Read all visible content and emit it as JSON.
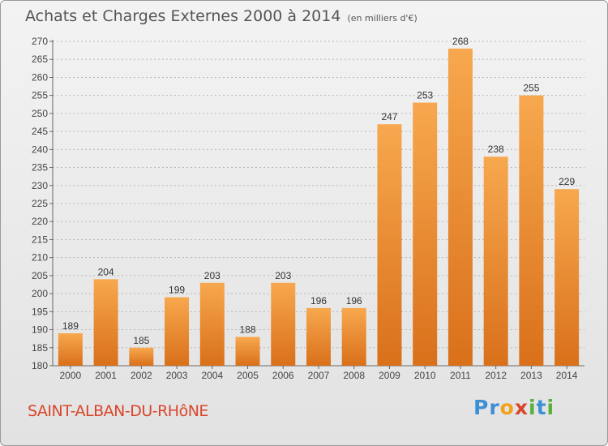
{
  "chart_data": {
    "type": "bar",
    "title": "Achats et Charges Externes 2000 à 2014",
    "subtitle": "(en milliers d'€)",
    "categories": [
      "2000",
      "2001",
      "2002",
      "2003",
      "2004",
      "2005",
      "2006",
      "2007",
      "2008",
      "2009",
      "2010",
      "2011",
      "2012",
      "2013",
      "2014"
    ],
    "values": [
      189,
      204,
      185,
      199,
      203,
      188,
      203,
      196,
      196,
      247,
      253,
      268,
      238,
      255,
      229
    ],
    "ylim": [
      180,
      270
    ],
    "yticks": [
      180,
      185,
      190,
      195,
      200,
      205,
      210,
      215,
      220,
      225,
      230,
      235,
      240,
      245,
      250,
      255,
      260,
      265,
      270
    ],
    "grid": true,
    "bar_color": "#f0922e"
  },
  "footer": {
    "town": "SAINT-ALBAN-DU-RHôNE",
    "brand_letters": [
      {
        "ch": "P",
        "color": "#3d8fd6"
      },
      {
        "ch": "r",
        "color": "#3d8fd6"
      },
      {
        "ch": "o",
        "color": "#f0a21a"
      },
      {
        "ch": "x",
        "color": "#d9462b"
      },
      {
        "ch": "i",
        "color": "#58b03a"
      },
      {
        "ch": "t",
        "color": "#3d8fd6"
      },
      {
        "ch": "i",
        "color": "#58b03a"
      }
    ]
  }
}
